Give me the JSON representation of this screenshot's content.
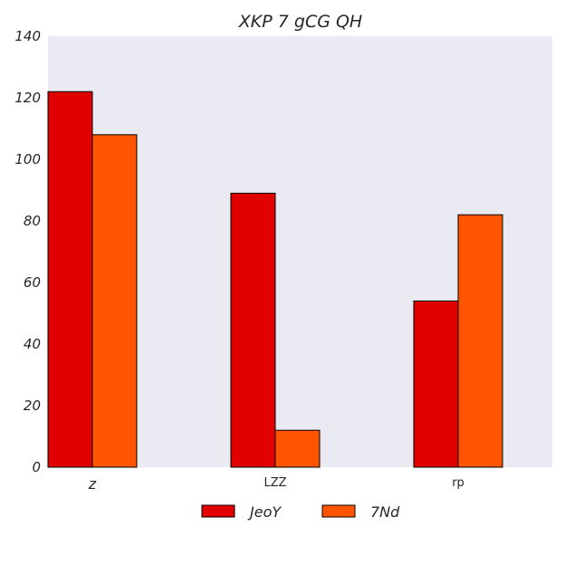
{
  "chart_data": {
    "type": "bar",
    "title": "XKP 7   gCG QH",
    "xlabel": "",
    "ylabel": "",
    "categories": [
      "z",
      "LZZ",
      "rp"
    ],
    "series": [
      {
        "name": "JeoY",
        "values": [
          122,
          89,
          54
        ],
        "color": "#e00000"
      },
      {
        "name": "7Nd",
        "values": [
          108,
          12,
          82
        ],
        "color": "#ff5500"
      }
    ],
    "ylim": [
      0,
      140
    ],
    "yticks": [
      "0",
      "20",
      "40",
      "60",
      "80",
      "100",
      "120",
      "140"
    ],
    "grid": false,
    "plot_background": "#eaeaf2",
    "legend_position": "bottom"
  }
}
